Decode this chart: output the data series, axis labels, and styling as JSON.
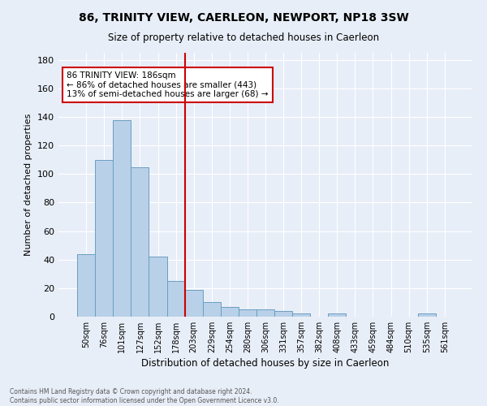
{
  "title": "86, TRINITY VIEW, CAERLEON, NEWPORT, NP18 3SW",
  "subtitle": "Size of property relative to detached houses in Caerleon",
  "xlabel": "Distribution of detached houses by size in Caerleon",
  "ylabel": "Number of detached properties",
  "bar_labels": [
    "50sqm",
    "76sqm",
    "101sqm",
    "127sqm",
    "152sqm",
    "178sqm",
    "203sqm",
    "229sqm",
    "254sqm",
    "280sqm",
    "306sqm",
    "331sqm",
    "357sqm",
    "382sqm",
    "408sqm",
    "433sqm",
    "459sqm",
    "484sqm",
    "510sqm",
    "535sqm",
    "561sqm"
  ],
  "bar_values": [
    44,
    110,
    138,
    105,
    42,
    25,
    19,
    10,
    7,
    5,
    5,
    4,
    2,
    0,
    2,
    0,
    0,
    0,
    0,
    2,
    0
  ],
  "bar_color": "#b8d0e8",
  "bar_edge_color": "#6a9fc0",
  "vline_x": 5.5,
  "vline_color": "#cc0000",
  "annotation_text": "86 TRINITY VIEW: 186sqm\n← 86% of detached houses are smaller (443)\n13% of semi-detached houses are larger (68) →",
  "annotation_box_color": "#cc0000",
  "footnote": "Contains HM Land Registry data © Crown copyright and database right 2024.\nContains public sector information licensed under the Open Government Licence v3.0.",
  "ylim": [
    0,
    185
  ],
  "yticks": [
    0,
    20,
    40,
    60,
    80,
    100,
    120,
    140,
    160,
    180
  ],
  "background_color": "#e8eef8",
  "axes_background": "#e8eef8",
  "grid_color": "#ffffff"
}
